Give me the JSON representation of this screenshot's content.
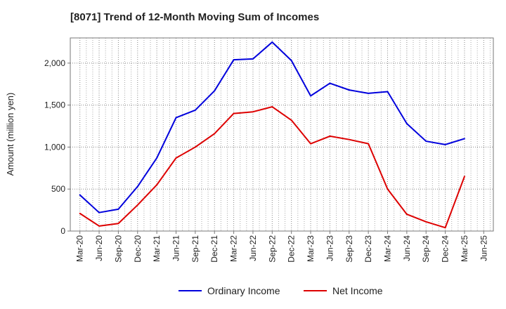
{
  "chart_data": {
    "type": "line",
    "title": "[8071]  Trend of 12-Month Moving Sum of Incomes",
    "xlabel": "",
    "ylabel": "Amount (million yen)",
    "ylim": [
      0,
      2300
    ],
    "yticks": [
      0,
      500,
      1000,
      1500,
      2000
    ],
    "ytick_labels": [
      "0",
      "500",
      "1,000",
      "1,500",
      "2,000"
    ],
    "grid": true,
    "legend_position": "bottom",
    "categories": [
      "Mar-20",
      "Jun-20",
      "Sep-20",
      "Dec-20",
      "Mar-21",
      "Jun-21",
      "Sep-21",
      "Dec-21",
      "Mar-22",
      "Jun-22",
      "Sep-22",
      "Dec-22",
      "Mar-23",
      "Jun-23",
      "Sep-23",
      "Dec-23",
      "Mar-24",
      "Jun-24",
      "Sep-24",
      "Dec-24",
      "Mar-25",
      "Jun-25"
    ],
    "series": [
      {
        "name": "Ordinary Income",
        "color": "#0000dd",
        "values": [
          430,
          220,
          260,
          530,
          870,
          1350,
          1440,
          1670,
          2040,
          2050,
          2250,
          2030,
          1610,
          1760,
          1680,
          1640,
          1660,
          1280,
          1070,
          1030,
          1100,
          null
        ]
      },
      {
        "name": "Net Income",
        "color": "#dd0000",
        "values": [
          210,
          60,
          90,
          310,
          550,
          870,
          1000,
          1160,
          1400,
          1420,
          1480,
          1320,
          1040,
          1130,
          1090,
          1040,
          500,
          200,
          110,
          40,
          650,
          null
        ]
      }
    ]
  }
}
